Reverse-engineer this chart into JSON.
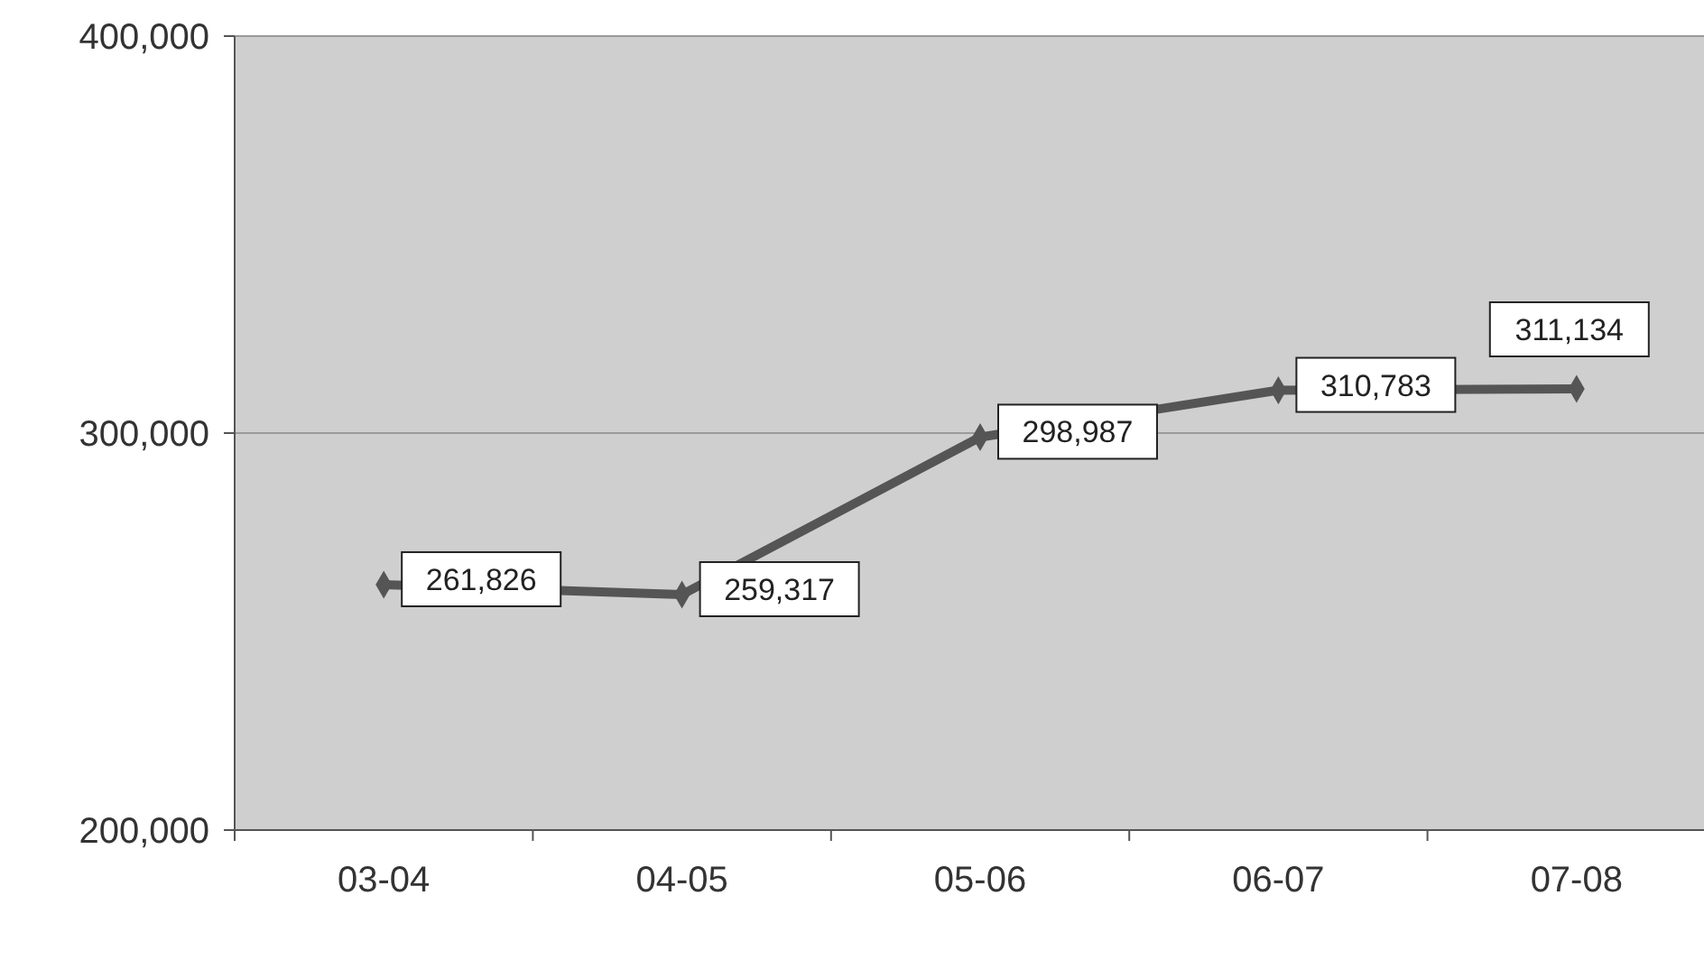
{
  "chart_data": {
    "type": "line",
    "categories": [
      "03-04",
      "04-05",
      "05-06",
      "06-07",
      "07-08"
    ],
    "series": [
      {
        "color": "#555555",
        "values": [
          261826,
          259317,
          298987,
          310783,
          311134
        ],
        "value_labels": [
          "261,826",
          "259,317",
          "298,987",
          "310,783",
          "311,134"
        ]
      }
    ],
    "ylim": [
      200000,
      400000
    ],
    "yticks": [
      {
        "value": 200000,
        "label": "200,000"
      },
      {
        "value": 300000,
        "label": "300,000"
      },
      {
        "value": 400000,
        "label": "400,000"
      }
    ],
    "grid": "y",
    "marker": "diamond",
    "line_style": "solid"
  }
}
